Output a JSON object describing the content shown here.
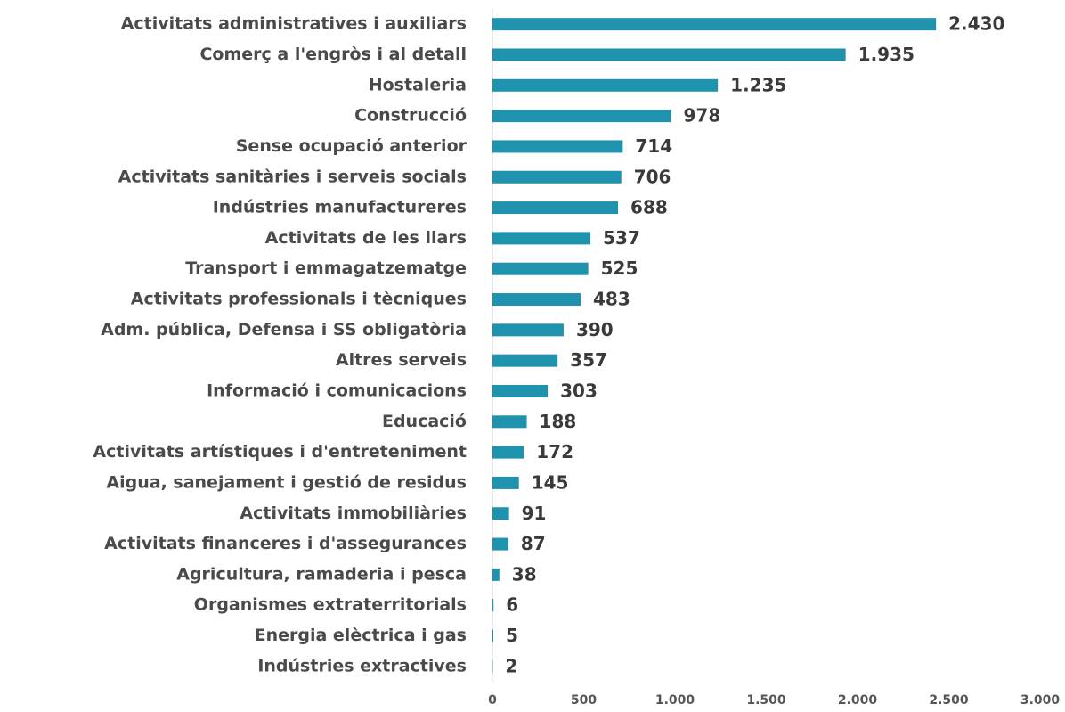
{
  "chart_data": {
    "type": "hbar",
    "categories": [
      "Activitats administratives i auxiliars",
      "Comerç a l'engròs i al detall",
      "Hostaleria",
      "Construcció",
      "Sense ocupació anterior",
      "Activitats sanitàries i serveis socials",
      "Indústries manufactureres",
      "Activitats de les llars",
      "Transport i emmagatzematge",
      "Activitats professionals i tècniques",
      "Adm. pública, Defensa i SS obligatòria",
      "Altres serveis",
      "Informació i comunicacions",
      "Educació",
      "Activitats artístiques i d'entreteniment",
      "Aigua, sanejament i gestió de residus",
      "Activitats immobiliàries",
      "Activitats financeres i d'assegurances",
      "Agricultura, ramaderia i pesca",
      "Organismes extraterritorials",
      "Energia elèctrica i gas",
      "Indústries extractives"
    ],
    "values": [
      2430,
      1935,
      1235,
      978,
      714,
      706,
      688,
      537,
      525,
      483,
      390,
      357,
      303,
      188,
      172,
      145,
      91,
      87,
      38,
      6,
      5,
      2
    ],
    "value_labels": [
      "2.430",
      "1.935",
      "1.235",
      "978",
      "714",
      "706",
      "688",
      "537",
      "525",
      "483",
      "390",
      "357",
      "303",
      "188",
      "172",
      "145",
      "91",
      "87",
      "38",
      "6",
      "5",
      "2"
    ],
    "color": "#1f93ad",
    "xlim": [
      0,
      3000
    ],
    "xticks": [
      0,
      500,
      {
        "value": 1000,
        "label": "1.000"
      },
      {
        "value": 1500,
        "label": "1.500"
      },
      {
        "value": 2000,
        "label": "2.000"
      },
      {
        "value": 2500,
        "label": "2.500"
      },
      {
        "value": 3000,
        "label": "3.000"
      }
    ],
    "grid": false
  }
}
